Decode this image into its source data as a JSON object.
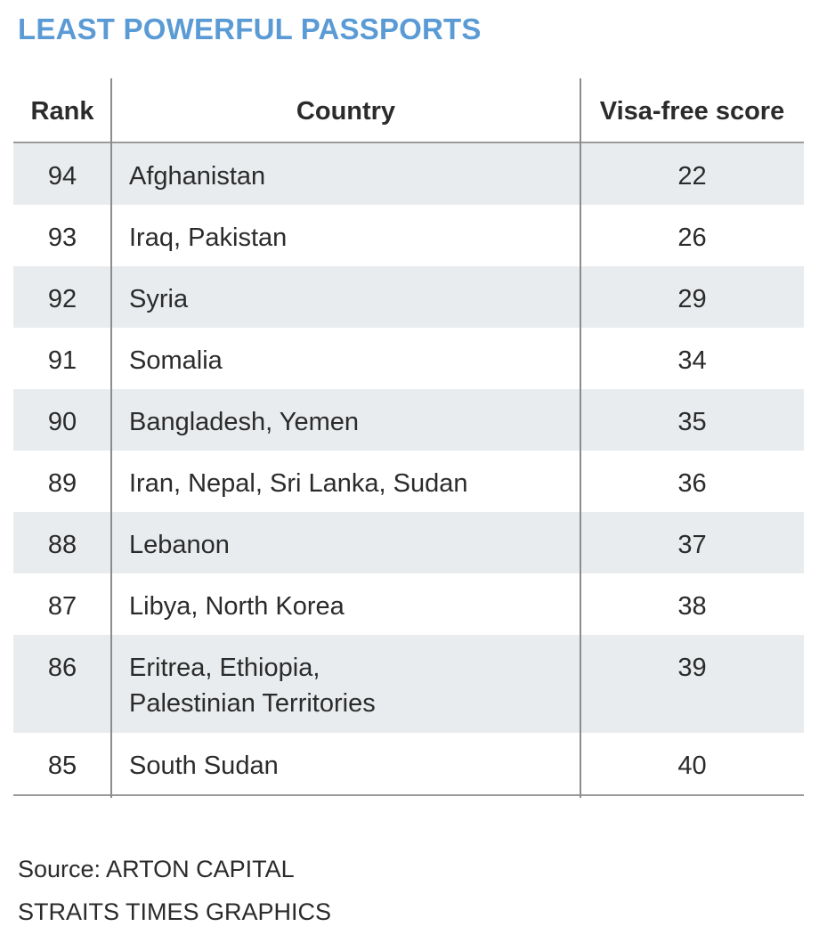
{
  "title": "LEAST POWERFUL PASSPORTS",
  "chart_data": {
    "type": "table",
    "title": "LEAST POWERFUL PASSPORTS",
    "columns": [
      "Rank",
      "Country",
      "Visa-free score"
    ],
    "rows": [
      {
        "rank": "94",
        "country": "Afghanistan",
        "score": "22"
      },
      {
        "rank": "93",
        "country": "Iraq, Pakistan",
        "score": "26"
      },
      {
        "rank": "92",
        "country": "Syria",
        "score": "29"
      },
      {
        "rank": "91",
        "country": "Somalia",
        "score": "34"
      },
      {
        "rank": "90",
        "country": "Bangladesh, Yemen",
        "score": "35"
      },
      {
        "rank": "89",
        "country": "Iran, Nepal, Sri Lanka, Sudan",
        "score": "36"
      },
      {
        "rank": "88",
        "country": "Lebanon",
        "score": "37"
      },
      {
        "rank": "87",
        "country": "Libya, North Korea",
        "score": "38"
      },
      {
        "rank": "86",
        "country": "Eritrea, Ethiopia,\nPalestinian Territories",
        "score": "39"
      },
      {
        "rank": "85",
        "country": "South Sudan",
        "score": "40"
      }
    ]
  },
  "footer": {
    "source": "Source: ARTON CAPITAL",
    "credit": "STRAITS TIMES GRAPHICS"
  },
  "colors": {
    "title": "#5b9bd5",
    "row_shade": "#e9ecee",
    "rule": "#9a9a9a"
  }
}
